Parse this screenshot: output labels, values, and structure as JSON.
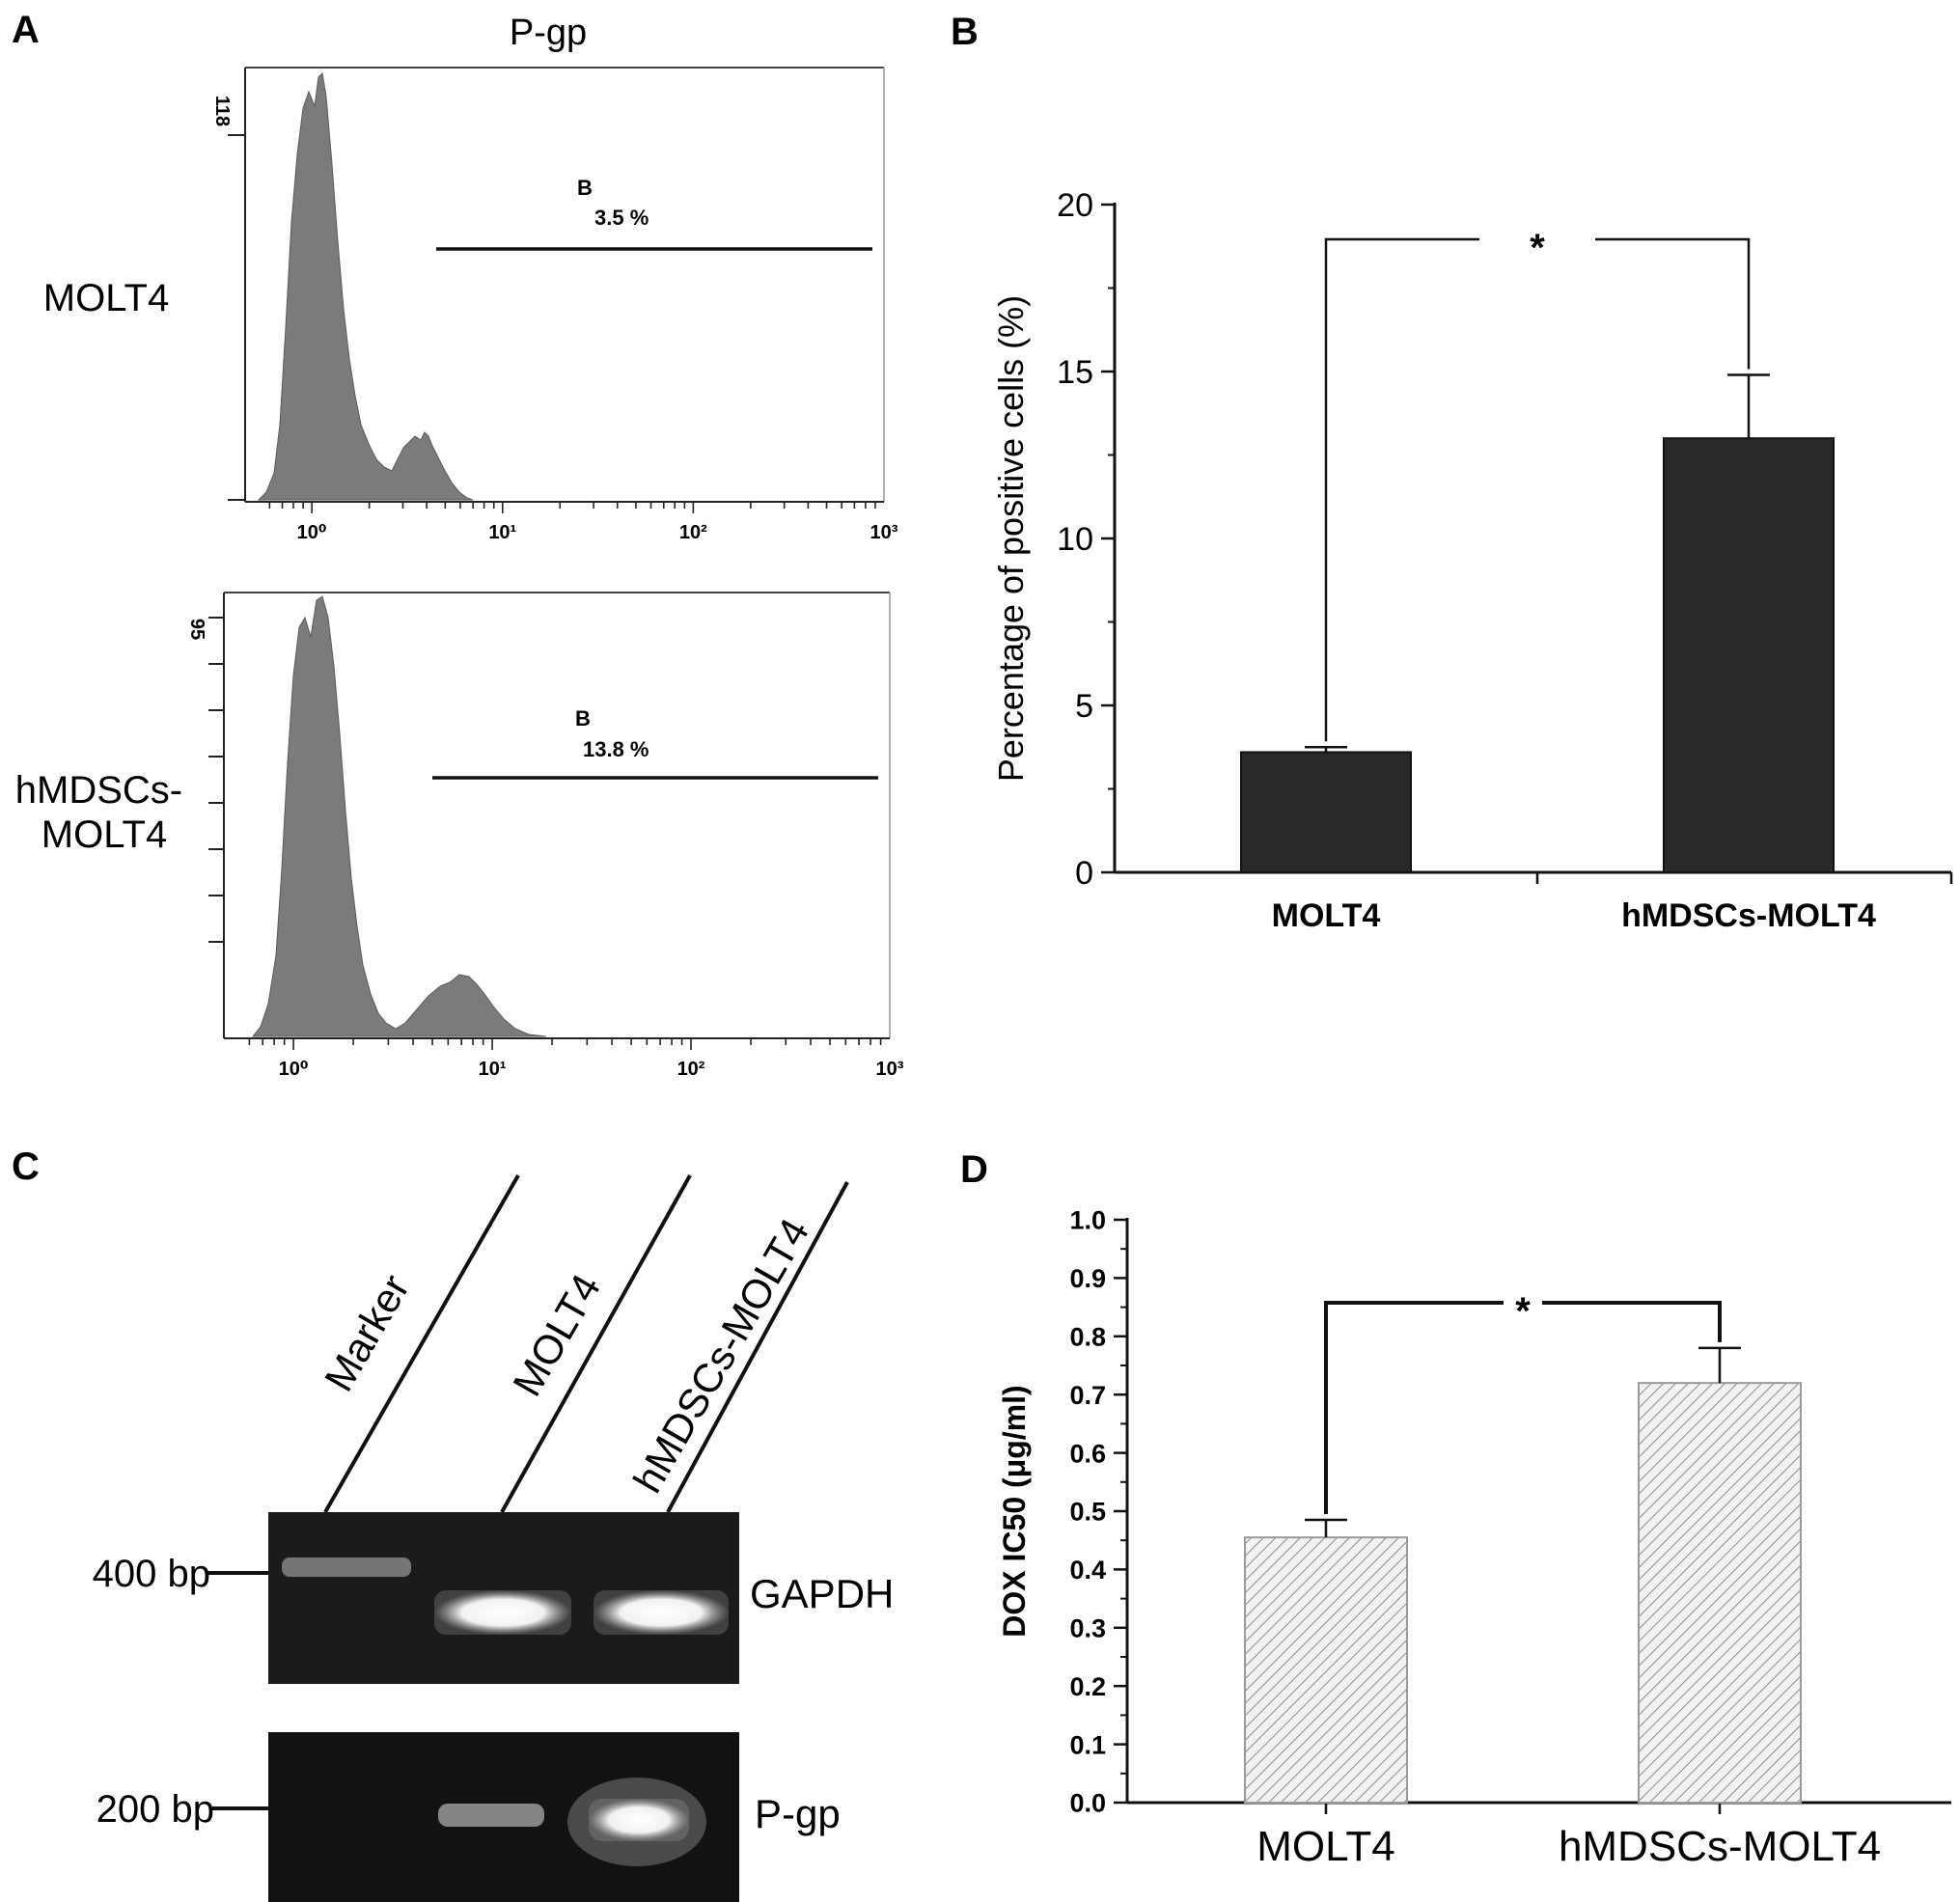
{
  "panels": {
    "A": {
      "letter": "A",
      "title": "P-gp",
      "histograms": [
        {
          "label": [
            "MOLT4"
          ],
          "y_max_label": "118",
          "gate_name": "B",
          "gate_percent": "3.5 %",
          "x_ticks": [
            "10⁰",
            "10¹",
            "10²",
            "10³"
          ]
        },
        {
          "label": [
            "hMDSCs-",
            "MOLT4"
          ],
          "y_max_label": "95",
          "gate_name": "B",
          "gate_percent": "13.8 %",
          "x_ticks": [
            "10⁰",
            "10¹",
            "10²",
            "10³"
          ]
        }
      ]
    },
    "B": {
      "letter": "B",
      "significance": "*"
    },
    "C": {
      "letter": "C",
      "lanes": [
        "Marker",
        "MOLT4",
        "hMDSCs-MOLT4"
      ],
      "gels": [
        {
          "marker": "400 bp",
          "gene": "GAPDH"
        },
        {
          "marker": "200 bp",
          "gene": "P-gp"
        }
      ]
    },
    "D": {
      "letter": "D",
      "significance": "*"
    }
  },
  "chart_data": [
    {
      "panel": "B",
      "type": "bar",
      "categories": [
        "MOLT4",
        "hMDSCs-MOLT4"
      ],
      "values": [
        3.6,
        13.0
      ],
      "errors": [
        0.15,
        1.9
      ],
      "ylabel": "Percentage of positive cells (%)",
      "xlabel": "",
      "ylim": [
        0,
        20
      ],
      "yticks": [
        0,
        5,
        10,
        15,
        20
      ],
      "bar_color": "#2a2a2a",
      "grid": false
    },
    {
      "panel": "D",
      "type": "bar",
      "categories": [
        "MOLT4",
        "hMDSCs-MOLT4"
      ],
      "values": [
        0.455,
        0.72
      ],
      "errors": [
        0.03,
        0.06
      ],
      "ylabel": "DOX IC50 (μg/ml)",
      "xlabel": "",
      "ylim": [
        0,
        1.0
      ],
      "yticks": [
        "0.0",
        "0.1",
        "0.2",
        "0.3",
        "0.4",
        "0.5",
        "0.6",
        "0.7",
        "0.8",
        "0.9",
        "1.0"
      ],
      "bar_fill": "hatched",
      "grid": false
    }
  ]
}
